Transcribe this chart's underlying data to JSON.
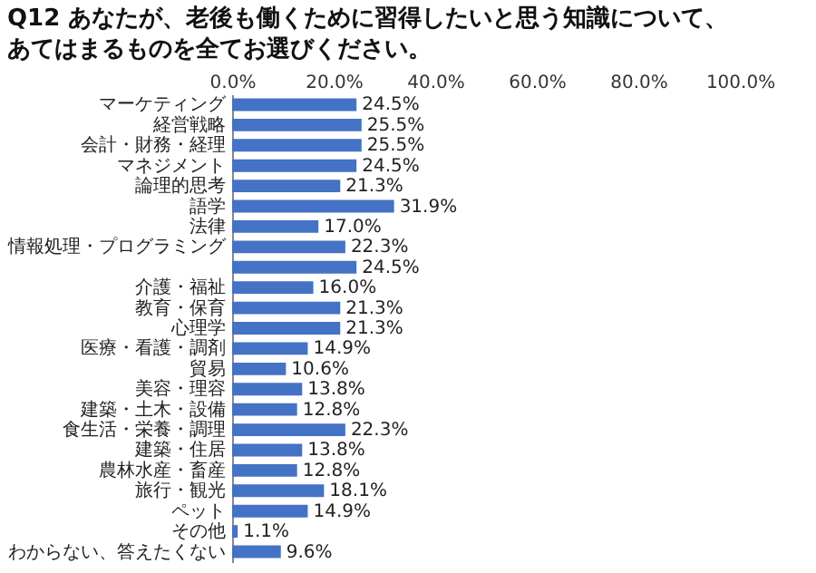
{
  "chart_data": {
    "type": "bar",
    "orientation": "horizontal",
    "title": "Q12 あなたが、老後も働くために習得したいと思う知識について、あてはまるものを全てお選びください。",
    "categories": [
      "マーケティング",
      "経営戦略",
      "会計・財務・経理",
      "マネジメント",
      "論理的思考",
      "語学",
      "法律",
      "情報処理・プログラミング",
      null,
      "介護・福祉",
      "教育・保育",
      "心理学",
      "医療・看護・調剤",
      "貿易",
      "美容・理容",
      "建築・土木・設備",
      "食生活・栄養・調理",
      "建築・住居",
      "農林水産・畜産",
      "旅行・観光",
      "ペット",
      "その他",
      "わからない、答えたくない"
    ],
    "values": [
      24.5,
      25.5,
      25.5,
      24.5,
      21.3,
      31.9,
      17.0,
      22.3,
      24.5,
      16.0,
      21.3,
      21.3,
      14.9,
      10.6,
      13.8,
      12.8,
      22.3,
      13.8,
      12.8,
      18.1,
      14.9,
      1.1,
      9.6
    ],
    "value_labels": [
      "24.5%",
      "25.5%",
      "25.5%",
      "24.5%",
      "21.3%",
      "31.9%",
      "17.0%",
      "22.3%",
      "24.5%",
      "16.0%",
      "21.3%",
      "21.3%",
      "14.9%",
      "10.6%",
      "13.8%",
      "12.8%",
      "22.3%",
      "13.8%",
      "12.8%",
      "18.1%",
      "14.9%",
      "1.1%",
      "9.6%"
    ],
    "color": "#4472c4",
    "xlim": [
      0,
      100
    ],
    "xticks": [
      {
        "value": 0,
        "label": "0.0%"
      },
      {
        "value": 20,
        "label": "20.0%"
      },
      {
        "value": 40,
        "label": "40.0%"
      },
      {
        "value": 60,
        "label": "60.0%"
      },
      {
        "value": 80,
        "label": "80.0%"
      },
      {
        "value": 100,
        "label": "100.0%"
      }
    ],
    "grid": false
  }
}
